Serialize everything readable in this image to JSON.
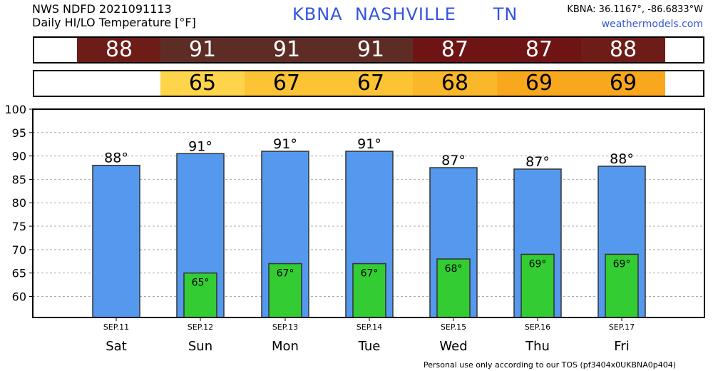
{
  "header": {
    "line1": "NWS NDFD 2021091113",
    "line2": "Daily HI/LO Temperature [°F]",
    "station": "KBNA",
    "city": "NASHVILLE",
    "state": "TN",
    "coords": "KBNA: 36.1167°, -86.6833°W",
    "site": "weathermodels.com"
  },
  "hi_strip": {
    "values": [
      "88",
      "91",
      "91",
      "91",
      "87",
      "87",
      "88"
    ],
    "colors": [
      "#6e1c18",
      "#5c2c25",
      "#5c2c25",
      "#5c2c25",
      "#6e1414",
      "#6e1414",
      "#6e1c18"
    ]
  },
  "lo_strip": {
    "values": [
      "",
      "65",
      "67",
      "67",
      "68",
      "69",
      "69"
    ],
    "colors": [
      "#ffffff",
      "#fdd44a",
      "#fcc435",
      "#fcc435",
      "#fbb72a",
      "#f9a81e",
      "#f9a81e"
    ]
  },
  "chart_data": {
    "type": "bar",
    "categories": [
      "Sat",
      "Sun",
      "Mon",
      "Tue",
      "Wed",
      "Thu",
      "Fri"
    ],
    "dates": [
      "SEP.11",
      "SEP.12",
      "SEP.13",
      "SEP.14",
      "SEP.15",
      "SEP.16",
      "SEP.17"
    ],
    "series": [
      {
        "values": [
          88,
          90.5,
          91,
          91,
          87.5,
          87.2,
          87.8
        ],
        "color": "#5599ee"
      },
      {
        "values": [
          null,
          65,
          67,
          67,
          68,
          69,
          69
        ],
        "color": "#33cc33"
      }
    ],
    "hi_labels": [
      "88°",
      "91°",
      "91°",
      "91°",
      "87°",
      "87°",
      "88°"
    ],
    "lo_labels": [
      "",
      "65°",
      "67°",
      "67°",
      "68°",
      "69°",
      "69°"
    ],
    "yticks": [
      60,
      65,
      70,
      75,
      80,
      85,
      90,
      95,
      100
    ],
    "ylim": [
      55.5,
      100
    ],
    "grid": true
  },
  "footer": {
    "tos": "Personal use only according to our TOS (pf3404x0UKBNA0p404)"
  }
}
